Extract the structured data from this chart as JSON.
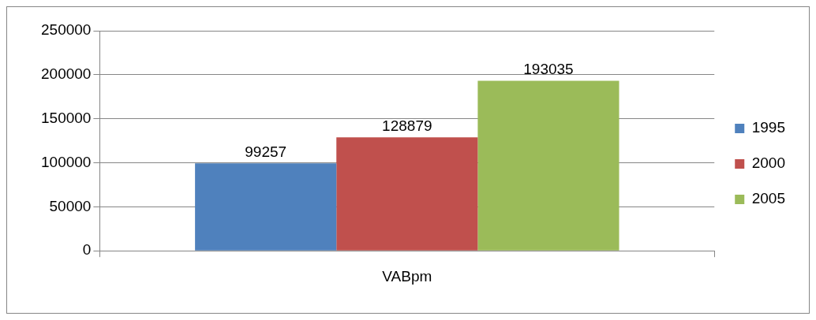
{
  "chart_data": {
    "type": "bar",
    "categories": [
      "VABpm"
    ],
    "series": [
      {
        "name": "1995",
        "color": "#4f81bd",
        "values": [
          99257
        ]
      },
      {
        "name": "2000",
        "color": "#c0504d",
        "values": [
          128879
        ]
      },
      {
        "name": "2005",
        "color": "#9bbb59",
        "values": [
          193035
        ]
      }
    ],
    "ylim": [
      0,
      250000
    ],
    "yticks": [
      0,
      50000,
      100000,
      150000,
      200000,
      250000
    ],
    "grid": "y",
    "legend": "right",
    "data_labels": true
  }
}
